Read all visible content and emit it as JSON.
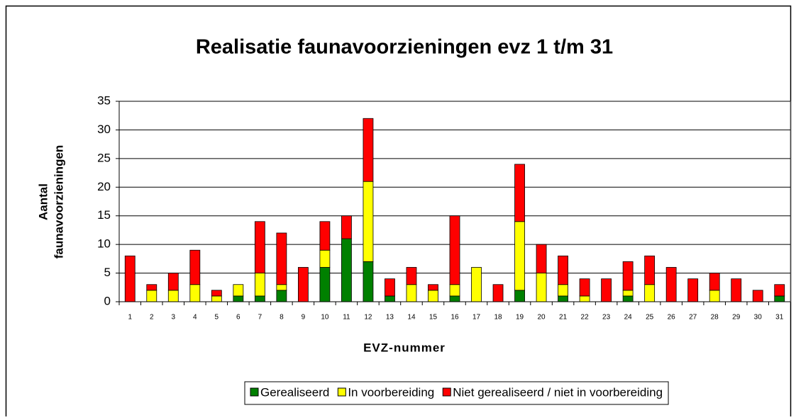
{
  "chart_data": {
    "type": "stacked_bar",
    "title": "Realisatie faunavoorzieningen evz 1 t/m 31",
    "ylabel_lines": [
      "Aantal",
      "faunavoorzieningen"
    ],
    "xlabel": "EVZ-nummer",
    "categories": [
      "1",
      "2",
      "3",
      "4",
      "5",
      "6",
      "7",
      "8",
      "9",
      "10",
      "11",
      "12",
      "13",
      "14",
      "15",
      "16",
      "17",
      "18",
      "19",
      "20",
      "21",
      "22",
      "23",
      "24",
      "25",
      "26",
      "27",
      "28",
      "29",
      "30",
      "31"
    ],
    "series": [
      {
        "name": "Gerealiseerd",
        "color": "#008000",
        "values": [
          0,
          0,
          0,
          0,
          0,
          1,
          1,
          2,
          0,
          6,
          11,
          7,
          1,
          0,
          0,
          1,
          0,
          0,
          2,
          0,
          1,
          0,
          0,
          1,
          0,
          0,
          0,
          0,
          0,
          0,
          1
        ]
      },
      {
        "name": "In voorbereiding",
        "color": "#ffff00",
        "values": [
          0,
          2,
          2,
          3,
          1,
          2,
          4,
          1,
          0,
          3,
          0,
          14,
          0,
          3,
          2,
          2,
          6,
          0,
          12,
          5,
          2,
          1,
          0,
          1,
          3,
          0,
          0,
          2,
          0,
          0,
          0
        ]
      },
      {
        "name": "Niet gerealiseerd / niet in voorbereiding",
        "color": "#ff0000",
        "values": [
          8,
          1,
          3,
          6,
          1,
          0,
          9,
          9,
          6,
          5,
          4,
          11,
          3,
          3,
          1,
          12,
          0,
          3,
          10,
          5,
          5,
          3,
          4,
          5,
          5,
          6,
          4,
          3,
          4,
          2,
          2
        ]
      }
    ],
    "ylim": [
      0,
      35
    ],
    "yticks": [
      0,
      5,
      10,
      15,
      20,
      25,
      30,
      35
    ],
    "grid": true,
    "legend": "bottom"
  }
}
